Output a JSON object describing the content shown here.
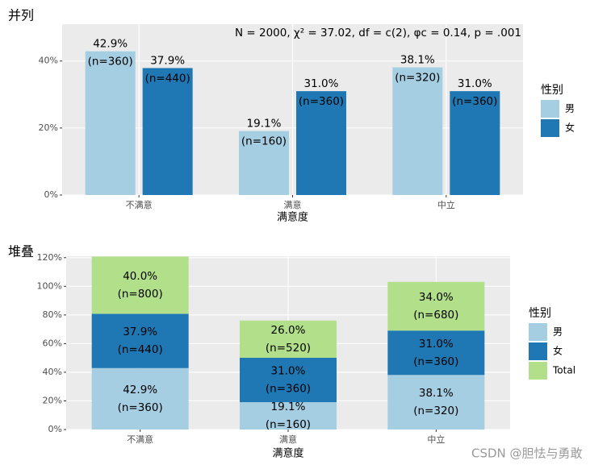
{
  "chart_data": [
    {
      "type": "bar",
      "title": "并列",
      "annotation": "N = 2000,  χ² = 37.02,  df = c(2),  φc = 0.14,  p = .001",
      "x_label": "满意度",
      "legend_title": "性别",
      "grid": true,
      "stacked": false,
      "categories": [
        "不满意",
        "满意",
        "中立"
      ],
      "ylim": [
        0,
        51
      ],
      "yticks": [
        {
          "value": 0,
          "label": "0%"
        },
        {
          "value": 20,
          "label": "20%"
        },
        {
          "value": 40,
          "label": "40%"
        }
      ],
      "series": [
        {
          "name": "男",
          "color": "#a6cee3",
          "values": [
            42.9,
            19.1,
            38.1
          ],
          "value_labels": [
            "42.9%",
            "19.1%",
            "38.1%"
          ],
          "count_labels": [
            "(n=360)",
            "(n=160)",
            "(n=320)"
          ]
        },
        {
          "name": "女",
          "color": "#1f78b4",
          "values": [
            37.9,
            31.0,
            31.0
          ],
          "value_labels": [
            "37.9%",
            "31.0%",
            "31.0%"
          ],
          "count_labels": [
            "(n=440)",
            "(n=360)",
            "(n=360)"
          ]
        }
      ]
    },
    {
      "type": "bar",
      "title": "堆叠",
      "x_label": "满意度",
      "legend_title": "性别",
      "grid": true,
      "stacked": true,
      "categories": [
        "不满意",
        "满意",
        "中立"
      ],
      "ylim": [
        0,
        121
      ],
      "yticks": [
        {
          "value": 0,
          "label": "0%"
        },
        {
          "value": 20,
          "label": "20%"
        },
        {
          "value": 40,
          "label": "40%"
        },
        {
          "value": 60,
          "label": "60%"
        },
        {
          "value": 80,
          "label": "80%"
        },
        {
          "value": 100,
          "label": "100%"
        },
        {
          "value": 120,
          "label": "120%"
        }
      ],
      "series": [
        {
          "name": "男",
          "color": "#a6cee3",
          "values": [
            42.9,
            19.1,
            38.1
          ],
          "value_labels": [
            "42.9%",
            "19.1%",
            "38.1%"
          ],
          "count_labels": [
            "(n=360)",
            "(n=160)",
            "(n=320)"
          ]
        },
        {
          "name": "女",
          "color": "#1f78b4",
          "values": [
            37.9,
            31.0,
            31.0
          ],
          "value_labels": [
            "37.9%",
            "31.0%",
            "31.0%"
          ],
          "count_labels": [
            "(n=440)",
            "(n=360)",
            "(n=360)"
          ]
        },
        {
          "name": "Total",
          "color": "#b2df8a",
          "values": [
            40.0,
            26.0,
            34.0
          ],
          "value_labels": [
            "40.0%",
            "26.0%",
            "34.0%"
          ],
          "count_labels": [
            "(n=800)",
            "(n=520)",
            "(n=680)"
          ]
        }
      ]
    }
  ],
  "watermark": "CSDN @胆怯与勇敢"
}
